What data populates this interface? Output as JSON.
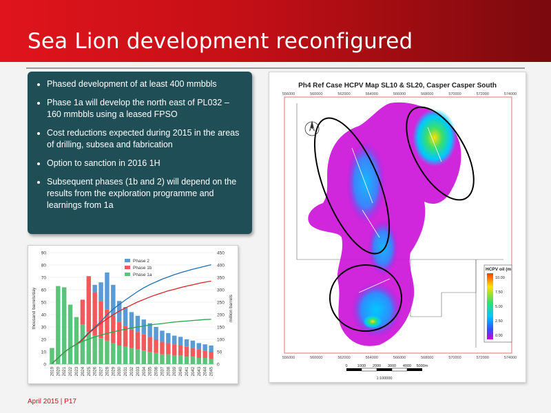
{
  "slide": {
    "title": "Sea Lion development reconfigured",
    "footer": "April 2015 | P17",
    "bullets": [
      "Phased development of at least 400 mmbbls",
      "Phase 1a will develop the north east of PL032 – 160 mmbbls using a leased FPSO",
      "Cost reductions expected during 2015 in the areas of drilling, subsea and fabrication",
      "Option to sanction in 2016 1H",
      "Subsequent phases (1b and 2) will depend on the results from the exploration programme and learnings from 1a"
    ]
  },
  "map": {
    "title": "Ph4 Ref Case HCPV Map SL10 & SL20, Casper Casper South",
    "legend_title": "HCPV oil (m",
    "legend_ticks": [
      "10.00",
      "7.50",
      "5.00",
      "2.50",
      "0.00"
    ],
    "x_ticks": [
      "556000",
      "560000",
      "562000",
      "564000",
      "566000",
      "568000",
      "570000",
      "572000",
      "574000"
    ],
    "scale_labels": [
      "0",
      "1000",
      "2000",
      "3000",
      "4000",
      "5000m"
    ],
    "scale_ratio": "1:100000",
    "colors": {
      "low": "#d000d0",
      "mid": "#00c8ff",
      "high": "#ffe000",
      "outline": "#000000"
    }
  },
  "chart_data": {
    "type": "bar",
    "stacked": true,
    "categories": [
      "2019",
      "2020",
      "2021",
      "2022",
      "2023",
      "2024",
      "2025",
      "2026",
      "2027",
      "2028",
      "2029",
      "2030",
      "2031",
      "2032",
      "2033",
      "2034",
      "2035",
      "2036",
      "2037",
      "2038",
      "2039",
      "2040",
      "2041",
      "2042",
      "2043",
      "2044",
      "2045"
    ],
    "series": [
      {
        "name": "Phase 1a",
        "color": "#5cc47a",
        "values": [
          13,
          63,
          62,
          48,
          38,
          32,
          26,
          23,
          21,
          19,
          17,
          15,
          14,
          13,
          12,
          11,
          10,
          9,
          8,
          8,
          7,
          7,
          6,
          6,
          5,
          5,
          4
        ]
      },
      {
        "name": "Phase 1b",
        "color": "#f05a5a",
        "values": [
          0,
          0,
          0,
          0,
          0,
          20,
          45,
          35,
          30,
          25,
          22,
          19,
          17,
          15,
          14,
          13,
          12,
          11,
          10,
          9,
          9,
          8,
          8,
          7,
          7,
          6,
          6
        ]
      },
      {
        "name": "Phase 2",
        "color": "#5b9bd5",
        "values": [
          0,
          0,
          0,
          0,
          0,
          0,
          0,
          6,
          15,
          30,
          25,
          17,
          15,
          14,
          13,
          12,
          11,
          10,
          9,
          8,
          7,
          7,
          6,
          6,
          5,
          5,
          5
        ]
      }
    ],
    "ylabel": "thousand barrels/day",
    "ylim": [
      0,
      90
    ],
    "yticks": [
      0,
      10,
      20,
      30,
      40,
      50,
      60,
      70,
      80,
      90
    ],
    "y2label": "million barrels",
    "y2lim": [
      0,
      450
    ],
    "y2ticks": [
      0,
      50,
      100,
      150,
      200,
      250,
      300,
      350,
      400,
      450
    ],
    "cumulative": [
      {
        "color": "#1f6fb5",
        "values": [
          2,
          25,
          48,
          66,
          80,
          101,
          127,
          149,
          172,
          199,
          222,
          241,
          259,
          276,
          293,
          308,
          321,
          332,
          343,
          352,
          361,
          369,
          376,
          383,
          389,
          395,
          401
        ]
      },
      {
        "color": "#e02020",
        "values": [
          2,
          25,
          48,
          66,
          80,
          99,
          124,
          145,
          165,
          183,
          199,
          214,
          227,
          239,
          251,
          261,
          271,
          280,
          288,
          296,
          302,
          309,
          315,
          320,
          326,
          331,
          335
        ]
      },
      {
        "color": "#2aa64a",
        "values": [
          2,
          25,
          48,
          66,
          80,
          92,
          101,
          110,
          117,
          124,
          130,
          136,
          141,
          146,
          150,
          154,
          158,
          161,
          164,
          167,
          170,
          172,
          174,
          176,
          178,
          180,
          181
        ]
      }
    ],
    "legend_position": "top-center"
  }
}
